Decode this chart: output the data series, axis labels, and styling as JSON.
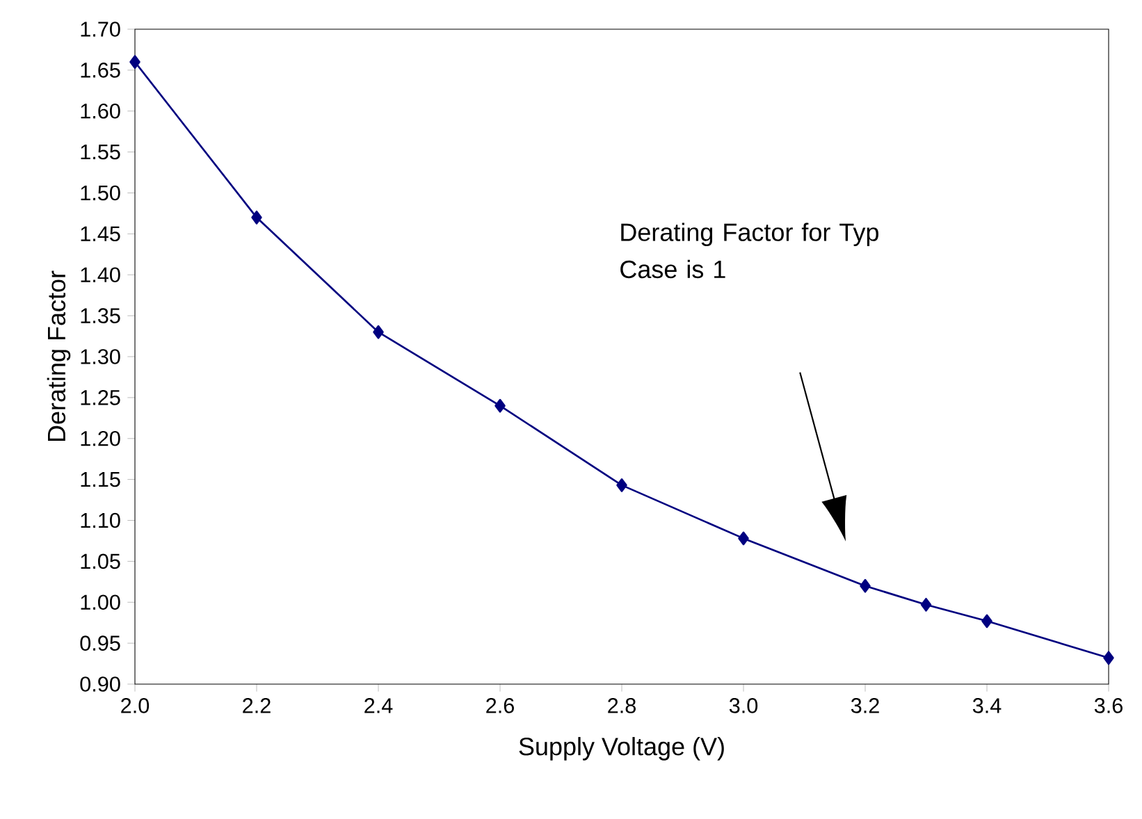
{
  "chart_data": {
    "type": "line",
    "xlabel": "Supply Voltage (V)",
    "ylabel": "Derating Factor",
    "x": [
      2.0,
      2.2,
      2.4,
      2.6,
      2.8,
      3.0,
      3.2,
      3.3,
      3.4,
      3.6
    ],
    "values": [
      1.66,
      1.47,
      1.33,
      1.24,
      1.143,
      1.078,
      1.02,
      0.997,
      0.977,
      0.932
    ],
    "color": "#000080",
    "marker": "diamond",
    "line_style": "solid",
    "grid": false,
    "xlim": [
      2.0,
      3.6
    ],
    "xticks": [
      {
        "value": 2.0,
        "label": "2.0"
      },
      2.2,
      2.4,
      2.6,
      2.8,
      {
        "value": 3.0,
        "label": "3.0"
      },
      3.2,
      3.4,
      3.6
    ],
    "ylim": [
      0.9,
      1.7
    ],
    "yticks": [
      {
        "value": 0.9,
        "label": "0.90"
      },
      0.95,
      {
        "value": 1.0,
        "label": "1.00"
      },
      1.05,
      {
        "value": 1.1,
        "label": "1.10"
      },
      1.15,
      {
        "value": 1.2,
        "label": "1.20"
      },
      1.25,
      {
        "value": 1.3,
        "label": "1.30"
      },
      1.35,
      {
        "value": 1.4,
        "label": "1.40"
      },
      1.45,
      {
        "value": 1.5,
        "label": "1.50"
      },
      1.55,
      {
        "value": 1.6,
        "label": "1.60"
      },
      1.65,
      {
        "value": 1.7,
        "label": "1.70"
      }
    ],
    "annotations": [
      "Derating Factor for Typ Case is 1"
    ]
  }
}
